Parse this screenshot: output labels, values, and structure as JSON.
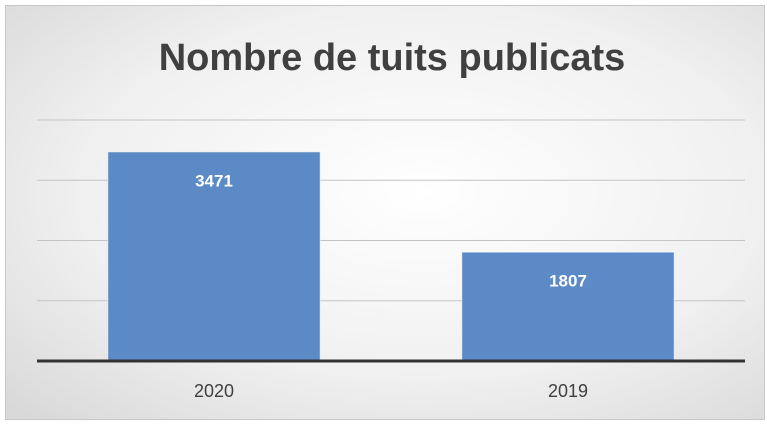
{
  "chart_data": {
    "type": "bar",
    "title": "Nombre de tuits publicats",
    "categories": [
      "2020",
      "2019"
    ],
    "values": [
      3471,
      1807
    ],
    "color": "#5b8ac6",
    "ylim": [
      0,
      4000
    ],
    "yticks": [
      0,
      1000,
      2000,
      3000,
      4000
    ],
    "grid": true
  }
}
